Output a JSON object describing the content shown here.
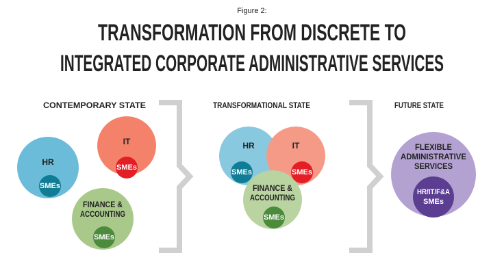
{
  "figure_label": "Figure 2:",
  "title": [
    "TRANSFORMATION FROM DISCRETE TO",
    "INTEGRATED CORPORATE ADMINISTRATIVE SERVICES"
  ],
  "panels": [
    {
      "heading": "CONTEMPORARY STATE",
      "circles": [
        {
          "label": [
            "HR"
          ],
          "sme": [
            "SMEs"
          ]
        },
        {
          "label": [
            "IT"
          ],
          "sme": [
            "SMEs"
          ]
        },
        {
          "label": [
            "FINANCE &",
            "ACCOUNTING"
          ],
          "sme": [
            "SMEs"
          ]
        }
      ]
    },
    {
      "heading": "TRANSFORMATIONAL STATE",
      "circles": [
        {
          "label": [
            "HR"
          ],
          "sme": [
            "SMEs"
          ]
        },
        {
          "label": [
            "IT"
          ],
          "sme": [
            "SMEs"
          ]
        },
        {
          "label": [
            "FINANCE &",
            "ACCOUNTING"
          ],
          "sme": [
            "SMEs"
          ]
        }
      ]
    },
    {
      "heading": "FUTURE STATE",
      "circles": [
        {
          "label": [
            "FLEXIBLE",
            "ADMINISTRATIVE",
            "SERVICES"
          ],
          "sme": [
            "HR/IT/F&A",
            "SMEs"
          ]
        }
      ]
    }
  ]
}
